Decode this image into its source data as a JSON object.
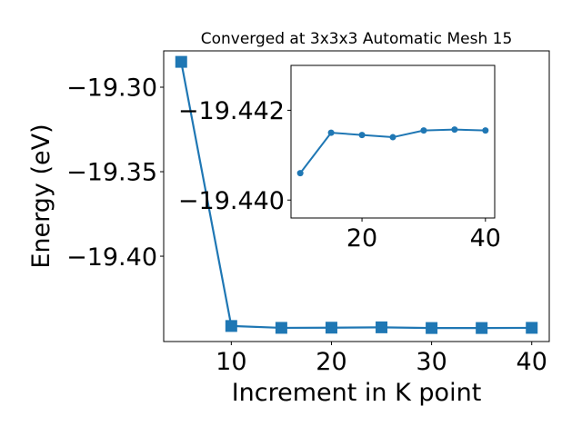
{
  "chart_data": [
    {
      "id": "main",
      "type": "line",
      "title": "Converged at 3x3x3 Automatic Mesh 15",
      "xlabel": "Increment in K point",
      "ylabel": "Energy (eV)",
      "xlim": [
        3.25,
        41.75
      ],
      "ylim": [
        -19.4505,
        -19.2785
      ],
      "xticks": [
        10,
        20,
        30,
        40
      ],
      "yticks": [
        -19.3,
        -19.35,
        -19.4
      ],
      "ytick_labels": [
        "−19.30",
        "−19.35",
        "−19.40"
      ],
      "marker": "square",
      "color": "#1f77b4",
      "series": [
        {
          "x": [
            5,
            10,
            15,
            20,
            25,
            30,
            35,
            40
          ],
          "y": [
            -19.285,
            -19.4413,
            -19.4424,
            -19.4423,
            -19.4421,
            -19.4425,
            -19.4425,
            -19.4424
          ]
        }
      ]
    },
    {
      "id": "inset",
      "type": "line",
      "title": "",
      "xlabel": "",
      "ylabel": "",
      "xlim": [
        8.5,
        41.5
      ],
      "ylim": [
        -19.4396,
        -19.443
      ],
      "xticks": [
        20,
        40
      ],
      "yticks": [
        -19.442,
        -19.44
      ],
      "ytick_labels": [
        "−19.442",
        "−19.440"
      ],
      "marker": "circle",
      "color": "#1f77b4",
      "series": [
        {
          "x": [
            10,
            15,
            20,
            25,
            30,
            35,
            40
          ],
          "y": [
            -19.4406,
            -19.4415,
            -19.44145,
            -19.4414,
            -19.44155,
            -19.44157,
            -19.44155
          ]
        }
      ]
    }
  ]
}
